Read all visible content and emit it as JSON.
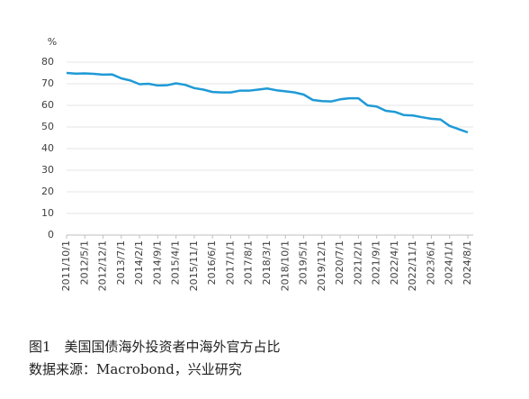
{
  "chart_data": {
    "type": "line",
    "title": "图1　美国国债海外投资者中海外官方占比",
    "source": "数据来源：Macrobond，兴业研究",
    "y_unit": "%",
    "categories": [
      "2011/10/1",
      null,
      "2012/5/1",
      null,
      "2012/12/1",
      null,
      "2013/7/1",
      null,
      "2014/2/1",
      null,
      "2014/9/1",
      null,
      "2015/4/1",
      null,
      "2015/11/1",
      null,
      "2016/6/1",
      null,
      "2017/1/1",
      null,
      "2017/8/1",
      null,
      "2018/3/1",
      null,
      "2018/10/1",
      null,
      "2019/5/1",
      null,
      "2019/12/1",
      null,
      "2020/7/1",
      null,
      "2021/2/1",
      null,
      "2021/9/1",
      null,
      "2022/4/1",
      null,
      "2022/11/1",
      null,
      "2023/6/1",
      null,
      "2024/1/1",
      null,
      "2024/8/1"
    ],
    "series": [
      {
        "name": "海外官方占比",
        "color": "#1f9ad6",
        "values": [
          75,
          74.7,
          74.8,
          74.6,
          74.2,
          74.3,
          72.5,
          71.5,
          69.8,
          70,
          69.2,
          69.3,
          70.2,
          69.5,
          68,
          67.3,
          66.2,
          66,
          66,
          66.8,
          66.8,
          67.3,
          67.8,
          67,
          66.5,
          66,
          65,
          62.5,
          62,
          61.8,
          62.8,
          63.3,
          63.3,
          60,
          59.5,
          57.5,
          57,
          55.5,
          55.3,
          54.5,
          53.8,
          53.5,
          50.5,
          49,
          47.5
        ]
      }
    ],
    "ylim": [
      0,
      80
    ],
    "yticks": [
      0,
      10,
      20,
      30,
      40,
      50,
      60,
      70,
      80
    ],
    "grid": true
  }
}
